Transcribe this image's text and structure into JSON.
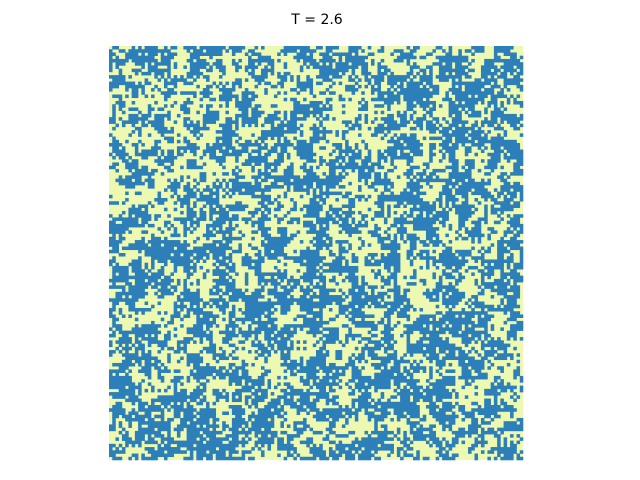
{
  "chart_data": {
    "type": "heatmap",
    "title": "T = 2.6",
    "colors": [
      "#edf8b1",
      "#2c7fb8"
    ]
  }
}
